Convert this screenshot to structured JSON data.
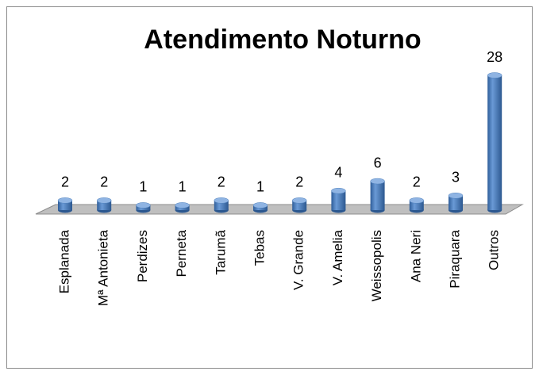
{
  "chart_data": {
    "type": "bar",
    "title": "Atendimento Noturno",
    "categories": [
      "Esplanada",
      "Mª Antonieta",
      "Perdizes",
      "Perneta",
      "Tarumã",
      "Tebas",
      "V. Grande",
      "V. Amelia",
      "Weissopolis",
      "Ana Neri",
      "Piraquara",
      "Outros"
    ],
    "values": [
      2,
      2,
      1,
      1,
      2,
      1,
      2,
      4,
      6,
      2,
      3,
      28
    ],
    "color": "#4f81bd"
  }
}
